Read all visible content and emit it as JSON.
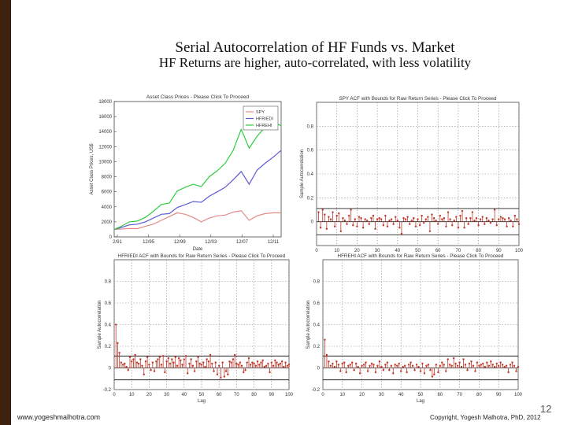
{
  "slide": {
    "title": "Serial Autocorrelation of HF Funds vs. Market",
    "subtitle": "HF Returns are higher, auto-correlated, with less volatility",
    "website": "www.yogeshmalhotra.com",
    "copyright": "Copyright, Yogesh Malhotra, PhD, 2012",
    "page_number": "12"
  },
  "colors": {
    "sidebar": "#3d2210",
    "spy": "#e58a8a",
    "hfriedi": "#5b5bd6",
    "hfrehi": "#2ecc40",
    "acf_stem": "#c0392b",
    "bounds": "#222222"
  },
  "chart_data": [
    {
      "type": "line",
      "title": "Asset Class Prices - Please Click To Proceed",
      "xlabel": "Date",
      "ylabel": "Asset Class Prices, US$",
      "x_tick_labels": [
        "2/91",
        "12/95",
        "12/99",
        "12/03",
        "12/07",
        "12/11"
      ],
      "x_range": [
        1991.1,
        2012.0
      ],
      "ylim": [
        0,
        18000
      ],
      "y_ticks": [
        0,
        2000,
        4000,
        6000,
        8000,
        10000,
        12000,
        14000,
        16000,
        18000
      ],
      "legend_position": "top-right",
      "grid": false,
      "series": [
        {
          "name": "SPY",
          "color": "#e58a8a",
          "x": [
            1991.1,
            1992,
            1993,
            1994,
            1995,
            1996,
            1997,
            1998,
            1999,
            2000,
            2001,
            2002,
            2003,
            2004,
            2005,
            2006,
            2007,
            2008,
            2009,
            2010,
            2011,
            2012
          ],
          "values": [
            1000,
            1050,
            1120,
            1100,
            1400,
            1700,
            2200,
            2700,
            3200,
            3000,
            2600,
            2000,
            2500,
            2800,
            2900,
            3300,
            3500,
            2200,
            2800,
            3100,
            3200,
            3200
          ]
        },
        {
          "name": "HFRIEDI",
          "color": "#5b5bd6",
          "x": [
            1991.1,
            1992,
            1993,
            1994,
            1995,
            1996,
            1997,
            1998,
            1999,
            2000,
            2001,
            2002,
            2003,
            2004,
            2005,
            2006,
            2007,
            2008,
            2009,
            2010,
            2011,
            2012
          ],
          "values": [
            1000,
            1250,
            1600,
            1700,
            2000,
            2500,
            3000,
            3100,
            3900,
            4300,
            4700,
            4600,
            5400,
            6000,
            6600,
            7600,
            8700,
            7000,
            8900,
            9800,
            10600,
            11500
          ]
        },
        {
          "name": "HFREHI",
          "color": "#2ecc40",
          "x": [
            1991.1,
            1992,
            1993,
            1994,
            1995,
            1996,
            1997,
            1998,
            1999,
            2000,
            2001,
            2002,
            2003,
            2004,
            2005,
            2006,
            2007,
            2008,
            2009,
            2010,
            2011,
            2012
          ],
          "values": [
            1000,
            1400,
            2000,
            2100,
            2600,
            3400,
            4300,
            4500,
            6100,
            6600,
            7000,
            6700,
            8000,
            8800,
            9800,
            11500,
            14300,
            11800,
            13400,
            14600,
            15200,
            14800
          ]
        }
      ]
    },
    {
      "type": "bar",
      "title": "SPY ACF with Bounds for Raw Return Series - Please Click To Proceed",
      "xlabel": "",
      "ylabel": "Sample Autocorrelation",
      "xlim": [
        0,
        100
      ],
      "x_ticks": [
        0,
        10,
        20,
        30,
        40,
        50,
        60,
        70,
        80,
        90,
        100
      ],
      "ylim": [
        -0.2,
        1.0
      ],
      "y_ticks": [
        0,
        0.2,
        0.4,
        0.6,
        0.8
      ],
      "y_tick_labels": [
        "0",
        "0.2",
        "0.4",
        "0.6",
        "0.8"
      ],
      "bounds": [
        0.11,
        -0.11
      ],
      "lags": [
        1,
        2,
        3,
        4,
        5,
        6,
        7,
        8,
        9,
        10,
        11,
        12,
        13,
        14,
        15,
        16,
        17,
        18,
        19,
        20,
        21,
        22,
        23,
        24,
        25,
        26,
        27,
        28,
        29,
        30,
        31,
        32,
        33,
        34,
        35,
        36,
        37,
        38,
        39,
        40,
        41,
        42,
        43,
        44,
        45,
        46,
        47,
        48,
        49,
        50,
        51,
        52,
        53,
        54,
        55,
        56,
        57,
        58,
        59,
        60,
        61,
        62,
        63,
        64,
        65,
        66,
        67,
        68,
        69,
        70,
        71,
        72,
        73,
        74,
        75,
        76,
        77,
        78,
        79,
        80,
        81,
        82,
        83,
        84,
        85,
        86,
        87,
        88,
        89,
        90,
        91,
        92,
        93,
        94,
        95,
        96,
        97,
        98,
        99,
        100
      ],
      "values": [
        0.08,
        -0.05,
        0.1,
        0.06,
        -0.06,
        0.04,
        0.02,
        0.08,
        -0.04,
        0.05,
        0.07,
        -0.08,
        0.03,
        0.01,
        -0.02,
        0.05,
        0.1,
        -0.03,
        0.02,
        -0.04,
        0.04,
        0.03,
        -0.05,
        0.02,
        0.01,
        -0.02,
        0.03,
        0.05,
        -0.06,
        0.02,
        0.03,
        0.02,
        -0.03,
        0.05,
        -0.04,
        0.01,
        0.02,
        -0.02,
        0.04,
        0.01,
        -0.05,
        -0.1,
        0.03,
        0.02,
        0.04,
        -0.02,
        0.01,
        0.03,
        -0.04,
        0.02,
        -0.03,
        0.05,
        -0.01,
        0.02,
        0.04,
        -0.08,
        0.06,
        0.03,
        0.01,
        -0.02,
        0.05,
        0.02,
        0.03,
        -0.04,
        0.08,
        0.02,
        -0.03,
        0.01,
        0.04,
        -0.05,
        0.05,
        0.09,
        -0.05,
        0.03,
        -0.02,
        0.03,
        0.08,
        0.01,
        0.03,
        -0.03,
        0.02,
        0.04,
        -0.02,
        0.03,
        0.01,
        -0.01,
        0.02,
        0.1,
        -0.03,
        0.02,
        0.04,
        0.03,
        0.02,
        -0.04,
        0.03,
        0.01,
        -0.04,
        0.05,
        0.02,
        -0.02
      ]
    },
    {
      "type": "bar",
      "title": "HFRIEDI ACF with Bounds for Raw Return Series - Please Click To Proceed",
      "xlabel": "Lag",
      "ylabel": "Sample Autocorrelation",
      "xlim": [
        0,
        100
      ],
      "x_ticks": [
        0,
        10,
        20,
        30,
        40,
        50,
        60,
        70,
        80,
        90,
        100
      ],
      "ylim": [
        -0.2,
        1.0
      ],
      "y_ticks": [
        -0.2,
        0,
        0.2,
        0.4,
        0.6,
        0.8
      ],
      "y_tick_labels": [
        "-0.2",
        "0",
        "0.2",
        "0.4",
        "0.6",
        "0.8"
      ],
      "bounds": [
        0.11,
        -0.11
      ],
      "lags": [
        1,
        2,
        3,
        4,
        5,
        6,
        7,
        8,
        9,
        10,
        11,
        12,
        13,
        14,
        15,
        16,
        17,
        18,
        19,
        20,
        21,
        22,
        23,
        24,
        25,
        26,
        27,
        28,
        29,
        30,
        31,
        32,
        33,
        34,
        35,
        36,
        37,
        38,
        39,
        40,
        41,
        42,
        43,
        44,
        45,
        46,
        47,
        48,
        49,
        50,
        51,
        52,
        53,
        54,
        55,
        56,
        57,
        58,
        59,
        60,
        61,
        62,
        63,
        64,
        65,
        66,
        67,
        68,
        69,
        70,
        71,
        72,
        73,
        74,
        75,
        76,
        77,
        78,
        79,
        80,
        81,
        82,
        83,
        84,
        85,
        86,
        87,
        88,
        89,
        90,
        91,
        92,
        93,
        94,
        95,
        96,
        97,
        98,
        99,
        100
      ],
      "values": [
        0.4,
        0.23,
        0.14,
        0.05,
        0.03,
        0.04,
        0.01,
        -0.02,
        0.1,
        0.06,
        0.08,
        0.12,
        0.05,
        0.04,
        0.08,
        0.02,
        -0.06,
        0.06,
        0.1,
        0.03,
        -0.02,
        0.05,
        -0.03,
        0.06,
        0.08,
        0.1,
        0.03,
        0.11,
        -0.04,
        0.06,
        0.09,
        0.04,
        0.08,
        0.05,
        0.1,
        0.02,
        0.09,
        0.07,
        0.03,
        0.08,
        0.11,
        -0.05,
        0.04,
        0.08,
        0.02,
        -0.03,
        0.06,
        0.1,
        0.04,
        0.03,
        0.05,
        0.01,
        0.08,
        0.06,
        0.12,
        0.04,
        -0.03,
        0.05,
        -0.06,
        0.02,
        -0.09,
        0.05,
        -0.08,
        -0.03,
        -0.06,
        0.06,
        0.05,
        0.08,
        0.12,
        0.04,
        0.03,
        0.05,
        0.02,
        -0.04,
        -0.02,
        0.05,
        0.09,
        0.03,
        0.05,
        0.04,
        0.02,
        0.06,
        0.03,
        0.05,
        0.07,
        0.01,
        0.02,
        0.04,
        -0.04,
        0.05,
        0.02,
        0.07,
        0.05,
        0.03,
        0.04,
        0.06,
        0.01,
        0.05,
        0.02,
        0.03
      ]
    },
    {
      "type": "bar",
      "title": "HFREHI ACF with Bounds for Raw Return Series - Please Click To Proceed",
      "xlabel": "Lag",
      "ylabel": "Sample Autocorrelation",
      "xlim": [
        0,
        100
      ],
      "x_ticks": [
        0,
        10,
        20,
        30,
        40,
        50,
        60,
        70,
        80,
        90,
        100
      ],
      "ylim": [
        -0.2,
        1.0
      ],
      "y_ticks": [
        -0.2,
        0,
        0.2,
        0.4,
        0.6,
        0.8
      ],
      "y_tick_labels": [
        "-0.2",
        "0",
        "0.2",
        "0.4",
        "0.6",
        "0.8"
      ],
      "bounds": [
        0.11,
        -0.11
      ],
      "lags": [
        1,
        2,
        3,
        4,
        5,
        6,
        7,
        8,
        9,
        10,
        11,
        12,
        13,
        14,
        15,
        16,
        17,
        18,
        19,
        20,
        21,
        22,
        23,
        24,
        25,
        26,
        27,
        28,
        29,
        30,
        31,
        32,
        33,
        34,
        35,
        36,
        37,
        38,
        39,
        40,
        41,
        42,
        43,
        44,
        45,
        46,
        47,
        48,
        49,
        50,
        51,
        52,
        53,
        54,
        55,
        56,
        57,
        58,
        59,
        60,
        61,
        62,
        63,
        64,
        65,
        66,
        67,
        68,
        69,
        70,
        71,
        72,
        73,
        74,
        75,
        76,
        77,
        78,
        79,
        80,
        81,
        82,
        83,
        84,
        85,
        86,
        87,
        88,
        89,
        90,
        91,
        92,
        93,
        94,
        95,
        96,
        97,
        98,
        99,
        100
      ],
      "values": [
        0.26,
        0.12,
        0.06,
        0.02,
        0.04,
        0.01,
        0.06,
        0.03,
        -0.03,
        0.04,
        0.05,
        -0.04,
        0.02,
        0.03,
        0.05,
        -0.02,
        0.04,
        0.01,
        -0.05,
        0.02,
        0.03,
        0.05,
        -0.03,
        0.02,
        0.04,
        0.03,
        -0.04,
        0.02,
        0.06,
        0.01,
        -0.02,
        0.03,
        0.05,
        -0.02,
        0.02,
        -0.05,
        0.03,
        0.02,
        0.04,
        -0.03,
        0.01,
        0.02,
        -0.04,
        0.03,
        0.05,
        0.02,
        -0.02,
        0.03,
        0.01,
        -0.03,
        0.04,
        -0.05,
        0.02,
        0.03,
        -0.02,
        -0.08,
        -0.06,
        0.03,
        -0.04,
        0.02,
        0.05,
        0.03,
        -0.03,
        0.08,
        0.03,
        0.02,
        0.09,
        0.04,
        0.02,
        0.05,
        0.01,
        0.08,
        0.03,
        -0.02,
        0.04,
        0.06,
        0.02,
        -0.03,
        0.05,
        0.02,
        0.03,
        0.04,
        0.01,
        0.05,
        0.02,
        0.06,
        0.03,
        0.01,
        0.04,
        0.02,
        0.05,
        0.03,
        0.01,
        0.02,
        -0.04,
        0.03,
        0.05,
        0.02,
        -0.03,
        0.01
      ]
    }
  ]
}
